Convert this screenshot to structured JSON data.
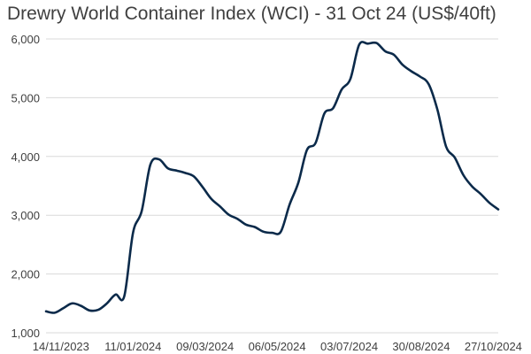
{
  "chart_data": {
    "type": "line",
    "title": "Drewry World Container Index (WCI) - 31 Oct 24 (US$/40ft)",
    "xlabel": "",
    "ylabel": "",
    "ylim": [
      1000,
      6000
    ],
    "y_ticks": [
      1000,
      2000,
      3000,
      4000,
      5000,
      6000
    ],
    "y_tick_labels": [
      "1,000",
      "2,000",
      "3,000",
      "4,000",
      "5,000",
      "6,000"
    ],
    "x_tick_labels": [
      "14/11/2023",
      "11/01/2024",
      "09/03/2024",
      "06/05/2024",
      "03/07/2024",
      "30/08/2024",
      "27/10/2024"
    ],
    "grid": "horizontal",
    "line_color": "#0b2a4a",
    "series": [
      {
        "x": [
          "2023-11-02",
          "2023-11-09",
          "2023-11-16",
          "2023-11-23",
          "2023-11-30",
          "2023-12-07",
          "2023-12-14",
          "2023-12-21",
          "2023-12-28",
          "2024-01-04",
          "2024-01-11",
          "2024-01-18",
          "2024-01-25",
          "2024-02-01",
          "2024-02-08",
          "2024-02-15",
          "2024-02-22",
          "2024-02-29",
          "2024-03-07",
          "2024-03-14",
          "2024-03-21",
          "2024-03-28",
          "2024-04-04",
          "2024-04-11",
          "2024-04-18",
          "2024-04-25",
          "2024-05-02",
          "2024-05-09",
          "2024-05-16",
          "2024-05-23",
          "2024-05-30",
          "2024-06-06",
          "2024-06-13",
          "2024-06-20",
          "2024-06-27",
          "2024-07-04",
          "2024-07-11",
          "2024-07-18",
          "2024-07-25",
          "2024-08-01",
          "2024-08-08",
          "2024-08-15",
          "2024-08-22",
          "2024-08-29",
          "2024-09-05",
          "2024-09-12",
          "2024-09-19",
          "2024-09-26",
          "2024-10-03",
          "2024-10-10",
          "2024-10-17",
          "2024-10-24",
          "2024-10-31"
        ],
        "values": [
          1365,
          1340,
          1420,
          1500,
          1460,
          1380,
          1390,
          1500,
          1650,
          1620,
          2700,
          3070,
          3860,
          3950,
          3800,
          3760,
          3720,
          3660,
          3480,
          3280,
          3150,
          3010,
          2940,
          2840,
          2800,
          2720,
          2700,
          2720,
          3180,
          3550,
          4110,
          4230,
          4730,
          4820,
          5140,
          5320,
          5900,
          5920,
          5930,
          5790,
          5730,
          5560,
          5450,
          5360,
          5230,
          4800,
          4170,
          3980,
          3680,
          3490,
          3360,
          3210,
          3100
        ]
      }
    ]
  }
}
